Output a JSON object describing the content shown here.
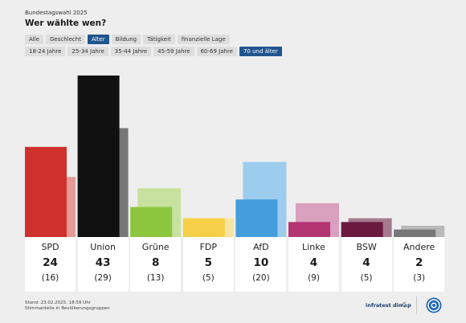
{
  "header": {
    "kicker": "Bundestagswahl 2025",
    "title": "Wer wählte wen?"
  },
  "filters": {
    "categories": [
      {
        "label": "Alle",
        "active": false
      },
      {
        "label": "Geschlecht",
        "active": false
      },
      {
        "label": "Alter",
        "active": true
      },
      {
        "label": "Bildung",
        "active": false
      },
      {
        "label": "Tätigkeit",
        "active": false
      },
      {
        "label": "finanzielle Lage",
        "active": false
      }
    ],
    "age_groups": [
      {
        "label": "18-24 Jahre",
        "active": false
      },
      {
        "label": "25-34 Jahre",
        "active": false
      },
      {
        "label": "35-44 Jahre",
        "active": false
      },
      {
        "label": "45-59 Jahre",
        "active": false
      },
      {
        "label": "60-69 Jahre",
        "active": false
      },
      {
        "label": "70 und älter",
        "active": true
      }
    ]
  },
  "chart_data": {
    "type": "bar",
    "categories": [
      "SPD",
      "Union",
      "Grüne",
      "FDP",
      "AfD",
      "Linke",
      "BSW",
      "Andere"
    ],
    "series": [
      {
        "values": [
          24,
          43,
          8,
          5,
          10,
          4,
          4,
          2
        ]
      },
      {
        "values": [
          16,
          29,
          13,
          5,
          20,
          9,
          5,
          3
        ]
      }
    ],
    "value_labels": [
      "24",
      "43",
      "8",
      "5",
      "10",
      "4",
      "4",
      "2"
    ],
    "prev_labels": [
      "(16)",
      "(29)",
      "(13)",
      "(5)",
      "(20)",
      "(9)",
      "(5)",
      "(3)"
    ],
    "colors": [
      "#d0312d",
      "#111111",
      "#8cc63f",
      "#f5cf47",
      "#459ddb",
      "#b33572",
      "#6a1a3f",
      "#777777"
    ],
    "prev_colors": [
      "#e49a97",
      "#777777",
      "#c7e29e",
      "#f9e4a0",
      "#9ccdee",
      "#d9a1be",
      "#a57a8e",
      "#b8b8b8"
    ],
    "ylim": [
      0,
      45
    ],
    "grid": false,
    "legend": "none"
  },
  "footer": {
    "note1": "Stand: 23.02.2025, 18:59 Uhr",
    "note2": "Stimmanteile in Bevölkerungsgruppen",
    "brand": "infratest dimap"
  }
}
